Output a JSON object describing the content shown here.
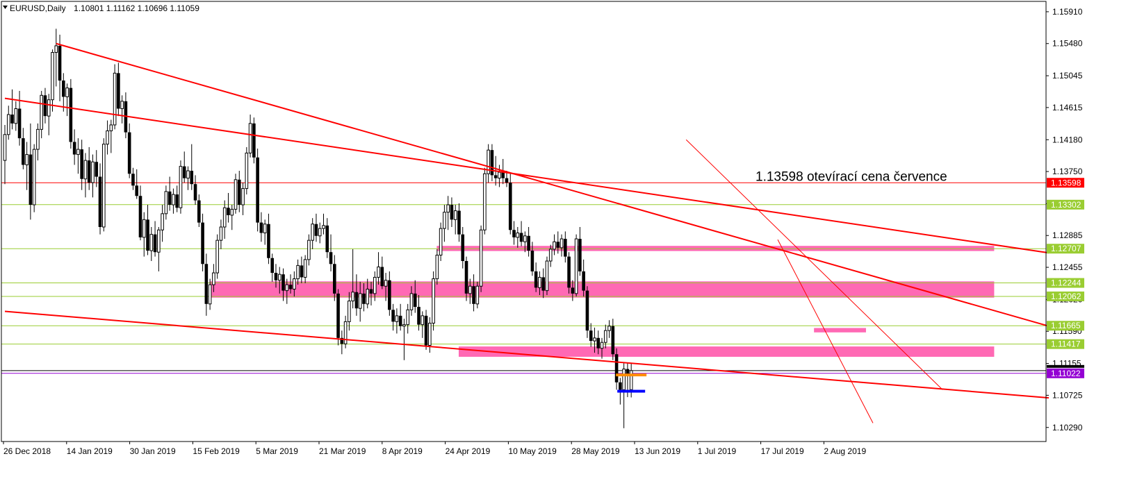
{
  "header": {
    "symbol_timeframe": "EURUSD,Daily",
    "ohlc": "1.10801 1.11162 1.10696 1.11059"
  },
  "chart_data": {
    "type": "candlestick",
    "title": "EURUSD,Daily",
    "ylim": [
      1.101,
      1.1605
    ],
    "y_ticks": [
      1.1591,
      1.1548,
      1.15045,
      1.14615,
      1.1418,
      1.1375,
      1.13315,
      1.12885,
      1.12455,
      1.1202,
      1.1159,
      1.11155,
      1.10725,
      1.1029
    ],
    "x_tick_labels": [
      "26 Dec 2018",
      "14 Jan 2019",
      "30 Jan 2019",
      "15 Feb 2019",
      "5 Mar 2019",
      "21 Mar 2019",
      "8 Apr 2019",
      "24 Apr 2019",
      "10 May 2019",
      "28 May 2019",
      "13 Jun 2019",
      "1 Jul 2019",
      "17 Jul 2019",
      "2 Aug 2019"
    ],
    "horizontal_levels": [
      {
        "value": 1.13598,
        "label": "1.13598",
        "color": "#ff0000",
        "bg": "#ff0000"
      },
      {
        "value": 1.13302,
        "label": "1.13302",
        "color": "#9acd32",
        "bg": "#9acd32"
      },
      {
        "value": 1.12707,
        "label": "1.12707",
        "color": "#9acd32",
        "bg": "#9acd32"
      },
      {
        "value": 1.12244,
        "label": "1.12244",
        "color": "#9acd32",
        "bg": "#9acd32"
      },
      {
        "value": 1.12062,
        "label": "1.12062",
        "color": "#9acd32",
        "bg": "#9acd32"
      },
      {
        "value": 1.11665,
        "label": "1.11665",
        "color": "#9acd32",
        "bg": "#9acd32"
      },
      {
        "value": 1.11417,
        "label": "1.11417",
        "color": "#9acd32",
        "bg": "#9acd32"
      },
      {
        "value": 1.11022,
        "label": "1.11022",
        "color": "#9400d3",
        "bg": "#9400d3"
      }
    ],
    "current_price": {
      "value": 1.11059,
      "color": "#000000"
    },
    "annotation": {
      "text": "1.13598 otevírací cena července",
      "price": 1.13598
    },
    "zones": [
      {
        "from_bar": 118,
        "to_bar": 270,
        "low": 1.1268,
        "high": 1.1274
      },
      {
        "from_bar": 56,
        "to_bar": 270,
        "low": 1.1205,
        "high": 1.1226
      },
      {
        "from_bar": 124,
        "to_bar": 270,
        "low": 1.1125,
        "high": 1.1138
      },
      {
        "from_bar": 221,
        "to_bar": 235,
        "low": 1.1158,
        "high": 1.1163
      }
    ],
    "trendlines": [
      {
        "from": [
          14,
          1.1548
        ],
        "to": [
          285,
          1.1166
        ],
        "width": 2
      },
      {
        "from": [
          0,
          1.1474
        ],
        "to": [
          285,
          1.1265
        ],
        "width": 2
      },
      {
        "from": [
          0,
          1.1186
        ],
        "to": [
          285,
          1.1069
        ],
        "width": 2
      },
      {
        "from": [
          186,
          1.1418
        ],
        "to": [
          256,
          1.108
        ],
        "width": 1
      },
      {
        "from": [
          211,
          1.1283
        ],
        "to": [
          237,
          1.1035
        ],
        "width": 1
      }
    ],
    "candles": [
      [
        1.139,
        1.1438,
        1.1358,
        1.1425
      ],
      [
        1.1425,
        1.1464,
        1.1418,
        1.1452
      ],
      [
        1.1452,
        1.1486,
        1.1432,
        1.144
      ],
      [
        1.144,
        1.147,
        1.143,
        1.146
      ],
      [
        1.146,
        1.1484,
        1.141,
        1.142
      ],
      [
        1.142,
        1.1434,
        1.1378,
        1.1384
      ],
      [
        1.1384,
        1.1415,
        1.135,
        1.1398
      ],
      [
        1.1398,
        1.144,
        1.131,
        1.133
      ],
      [
        1.133,
        1.1412,
        1.132,
        1.1405
      ],
      [
        1.1405,
        1.144,
        1.139,
        1.1432
      ],
      [
        1.1432,
        1.1484,
        1.142,
        1.1478
      ],
      [
        1.1478,
        1.1488,
        1.144,
        1.145
      ],
      [
        1.145,
        1.148,
        1.1424,
        1.1472
      ],
      [
        1.1472,
        1.154,
        1.1456,
        1.1536
      ],
      [
        1.1536,
        1.1568,
        1.149,
        1.1545
      ],
      [
        1.1545,
        1.156,
        1.147,
        1.1498
      ],
      [
        1.1498,
        1.1508,
        1.1456,
        1.1476
      ],
      [
        1.1476,
        1.1494,
        1.145,
        1.1488
      ],
      [
        1.1488,
        1.15,
        1.1406,
        1.1415
      ],
      [
        1.1415,
        1.1432,
        1.1384,
        1.1398
      ],
      [
        1.1398,
        1.142,
        1.1372,
        1.1405
      ],
      [
        1.1405,
        1.1418,
        1.135,
        1.1365
      ],
      [
        1.1365,
        1.14,
        1.134,
        1.139
      ],
      [
        1.139,
        1.1408,
        1.135,
        1.136
      ],
      [
        1.136,
        1.1398,
        1.134,
        1.1388
      ],
      [
        1.1388,
        1.1404,
        1.1354,
        1.1368
      ],
      [
        1.1368,
        1.1386,
        1.129,
        1.13
      ],
      [
        1.13,
        1.142,
        1.1294,
        1.1412
      ],
      [
        1.1412,
        1.1444,
        1.1398,
        1.143
      ],
      [
        1.143,
        1.1445,
        1.14,
        1.1438
      ],
      [
        1.1438,
        1.152,
        1.1432,
        1.1508
      ],
      [
        1.1508,
        1.1522,
        1.145,
        1.146
      ],
      [
        1.146,
        1.1478,
        1.144,
        1.147
      ],
      [
        1.147,
        1.1482,
        1.142,
        1.1428
      ],
      [
        1.1428,
        1.144,
        1.1366,
        1.1372
      ],
      [
        1.1372,
        1.138,
        1.135,
        1.1356
      ],
      [
        1.1356,
        1.1378,
        1.1338,
        1.1342
      ],
      [
        1.1342,
        1.1356,
        1.1282,
        1.1286
      ],
      [
        1.1286,
        1.132,
        1.126,
        1.131
      ],
      [
        1.131,
        1.133,
        1.1262,
        1.1268
      ],
      [
        1.1268,
        1.13,
        1.1254,
        1.129
      ],
      [
        1.129,
        1.1308,
        1.126,
        1.1266
      ],
      [
        1.1266,
        1.13,
        1.124,
        1.1296
      ],
      [
        1.1296,
        1.133,
        1.128,
        1.1318
      ],
      [
        1.1318,
        1.1356,
        1.131,
        1.1348
      ],
      [
        1.1348,
        1.1368,
        1.1322,
        1.133
      ],
      [
        1.133,
        1.1352,
        1.1318,
        1.1344
      ],
      [
        1.1344,
        1.1356,
        1.132,
        1.1326
      ],
      [
        1.1326,
        1.139,
        1.1318,
        1.1382
      ],
      [
        1.1382,
        1.1402,
        1.136,
        1.1366
      ],
      [
        1.1366,
        1.1382,
        1.135,
        1.1376
      ],
      [
        1.1376,
        1.1412,
        1.135,
        1.1358
      ],
      [
        1.1358,
        1.137,
        1.133,
        1.1336
      ],
      [
        1.1336,
        1.1344,
        1.13,
        1.1306
      ],
      [
        1.1306,
        1.1318,
        1.124,
        1.125
      ],
      [
        1.125,
        1.1264,
        1.118,
        1.1196
      ],
      [
        1.1196,
        1.123,
        1.1188,
        1.1222
      ],
      [
        1.1222,
        1.125,
        1.1212,
        1.1238
      ],
      [
        1.1238,
        1.129,
        1.123,
        1.1282
      ],
      [
        1.1282,
        1.131,
        1.127,
        1.13
      ],
      [
        1.13,
        1.1336,
        1.1284,
        1.1326
      ],
      [
        1.1326,
        1.1346,
        1.1306,
        1.1316
      ],
      [
        1.1316,
        1.133,
        1.1296,
        1.1324
      ],
      [
        1.1324,
        1.1372,
        1.1318,
        1.1364
      ],
      [
        1.1364,
        1.1376,
        1.132,
        1.133
      ],
      [
        1.133,
        1.136,
        1.1316,
        1.1352
      ],
      [
        1.1352,
        1.1408,
        1.1344,
        1.14
      ],
      [
        1.14,
        1.1452,
        1.1394,
        1.144
      ],
      [
        1.144,
        1.1448,
        1.1386,
        1.1394
      ],
      [
        1.1394,
        1.1406,
        1.1294,
        1.1306
      ],
      [
        1.1306,
        1.132,
        1.128,
        1.1292
      ],
      [
        1.1292,
        1.131,
        1.1276,
        1.1304
      ],
      [
        1.1304,
        1.1318,
        1.125,
        1.1258
      ],
      [
        1.1258,
        1.1264,
        1.1226,
        1.1238
      ],
      [
        1.1238,
        1.125,
        1.1218,
        1.1228
      ],
      [
        1.1228,
        1.1246,
        1.121,
        1.1236
      ],
      [
        1.1236,
        1.1244,
        1.12,
        1.1214
      ],
      [
        1.1214,
        1.123,
        1.1196,
        1.1222
      ],
      [
        1.1222,
        1.1236,
        1.121,
        1.1216
      ],
      [
        1.1216,
        1.124,
        1.1206,
        1.123
      ],
      [
        1.123,
        1.1256,
        1.1222,
        1.1248
      ],
      [
        1.1248,
        1.126,
        1.1224,
        1.1232
      ],
      [
        1.1232,
        1.1262,
        1.1224,
        1.1256
      ],
      [
        1.1256,
        1.129,
        1.1248,
        1.1282
      ],
      [
        1.1282,
        1.1312,
        1.127,
        1.1304
      ],
      [
        1.1304,
        1.1318,
        1.128,
        1.1288
      ],
      [
        1.1288,
        1.1306,
        1.1278,
        1.1298
      ],
      [
        1.1298,
        1.1318,
        1.129,
        1.1302
      ],
      [
        1.1302,
        1.1312,
        1.1258,
        1.1266
      ],
      [
        1.1266,
        1.129,
        1.124,
        1.125
      ],
      [
        1.125,
        1.1262,
        1.12,
        1.121
      ],
      [
        1.121,
        1.1216,
        1.114,
        1.115
      ],
      [
        1.115,
        1.116,
        1.1128,
        1.1142
      ],
      [
        1.1142,
        1.118,
        1.1136,
        1.1172
      ],
      [
        1.1172,
        1.1212,
        1.116,
        1.12
      ],
      [
        1.12,
        1.127,
        1.119,
        1.1212
      ],
      [
        1.1212,
        1.1236,
        1.118,
        1.119
      ],
      [
        1.119,
        1.1226,
        1.1172,
        1.121
      ],
      [
        1.121,
        1.1224,
        1.1186,
        1.1196
      ],
      [
        1.1196,
        1.123,
        1.119,
        1.1216
      ],
      [
        1.1216,
        1.1226,
        1.1194,
        1.121
      ],
      [
        1.121,
        1.124,
        1.12,
        1.1232
      ],
      [
        1.1232,
        1.1266,
        1.1222,
        1.1246
      ],
      [
        1.1246,
        1.126,
        1.1216,
        1.122
      ],
      [
        1.122,
        1.1238,
        1.12,
        1.1228
      ],
      [
        1.1228,
        1.124,
        1.118,
        1.1188
      ],
      [
        1.1188,
        1.1196,
        1.116,
        1.1172
      ],
      [
        1.1172,
        1.119,
        1.1156,
        1.118
      ],
      [
        1.118,
        1.1196,
        1.116,
        1.1166
      ],
      [
        1.1166,
        1.1176,
        1.112,
        1.1168
      ],
      [
        1.1168,
        1.1196,
        1.1156,
        1.1188
      ],
      [
        1.1188,
        1.122,
        1.118,
        1.121
      ],
      [
        1.121,
        1.1228,
        1.1184,
        1.1192
      ],
      [
        1.1192,
        1.1208,
        1.116,
        1.1168
      ],
      [
        1.1168,
        1.1186,
        1.115,
        1.118
      ],
      [
        1.118,
        1.1188,
        1.1134,
        1.114
      ],
      [
        1.114,
        1.1178,
        1.113,
        1.117
      ],
      [
        1.117,
        1.124,
        1.116,
        1.123
      ],
      [
        1.123,
        1.127,
        1.1222,
        1.1262
      ],
      [
        1.1262,
        1.1306,
        1.1254,
        1.1298
      ],
      [
        1.1298,
        1.133,
        1.128,
        1.132
      ],
      [
        1.132,
        1.1342,
        1.1296,
        1.133
      ],
      [
        1.133,
        1.134,
        1.13,
        1.131
      ],
      [
        1.131,
        1.133,
        1.129,
        1.1322
      ],
      [
        1.1322,
        1.1332,
        1.128,
        1.129
      ],
      [
        1.129,
        1.13,
        1.1244,
        1.1254
      ],
      [
        1.1254,
        1.126,
        1.12,
        1.121
      ],
      [
        1.121,
        1.123,
        1.1196,
        1.122
      ],
      [
        1.122,
        1.1236,
        1.1186,
        1.1196
      ],
      [
        1.1196,
        1.1226,
        1.119,
        1.122
      ],
      [
        1.122,
        1.1302,
        1.1212,
        1.1296
      ],
      [
        1.1296,
        1.138,
        1.129,
        1.1372
      ],
      [
        1.1372,
        1.1412,
        1.136,
        1.1404
      ],
      [
        1.1404,
        1.1412,
        1.1362,
        1.137
      ],
      [
        1.137,
        1.1396,
        1.1356,
        1.1366
      ],
      [
        1.1366,
        1.1384,
        1.1354,
        1.1374
      ],
      [
        1.1374,
        1.1392,
        1.1358,
        1.1366
      ],
      [
        1.1366,
        1.1376,
        1.1354,
        1.136
      ],
      [
        1.136,
        1.1372,
        1.129,
        1.1296
      ],
      [
        1.1296,
        1.1308,
        1.1276,
        1.1286
      ],
      [
        1.1286,
        1.13,
        1.1272,
        1.1292
      ],
      [
        1.1292,
        1.1308,
        1.1274,
        1.128
      ],
      [
        1.128,
        1.1294,
        1.1266,
        1.1288
      ],
      [
        1.1288,
        1.13,
        1.126,
        1.1268
      ],
      [
        1.1268,
        1.128,
        1.1234,
        1.124
      ],
      [
        1.124,
        1.1252,
        1.1212,
        1.1218
      ],
      [
        1.1218,
        1.124,
        1.1208,
        1.1232
      ],
      [
        1.1232,
        1.1244,
        1.1204,
        1.1214
      ],
      [
        1.1214,
        1.126,
        1.1208,
        1.1254
      ],
      [
        1.1254,
        1.1276,
        1.1246,
        1.127
      ],
      [
        1.127,
        1.129,
        1.1262,
        1.128
      ],
      [
        1.128,
        1.1294,
        1.1264,
        1.1272
      ],
      [
        1.1272,
        1.129,
        1.126,
        1.1284
      ],
      [
        1.1284,
        1.1294,
        1.1252,
        1.126
      ],
      [
        1.126,
        1.1266,
        1.121,
        1.1218
      ],
      [
        1.1218,
        1.1228,
        1.12,
        1.121
      ],
      [
        1.121,
        1.129,
        1.1206,
        1.1284
      ],
      [
        1.1284,
        1.13,
        1.1234,
        1.124
      ],
      [
        1.124,
        1.1256,
        1.1206,
        1.1214
      ],
      [
        1.1214,
        1.122,
        1.115,
        1.116
      ],
      [
        1.116,
        1.117,
        1.1138,
        1.1146
      ],
      [
        1.1146,
        1.1164,
        1.113,
        1.115
      ],
      [
        1.115,
        1.116,
        1.1128,
        1.1136
      ],
      [
        1.1136,
        1.115,
        1.1122,
        1.1144
      ],
      [
        1.1144,
        1.1168,
        1.1136,
        1.116
      ],
      [
        1.116,
        1.1174,
        1.115,
        1.1166
      ],
      [
        1.1166,
        1.1176,
        1.112,
        1.1128
      ],
      [
        1.1128,
        1.1136,
        1.108,
        1.109
      ],
      [
        1.109,
        1.1096,
        1.106,
        1.108
      ],
      [
        1.108,
        1.1116,
        1.1028,
        1.1108
      ],
      [
        1.1108,
        1.1116,
        1.107,
        1.11
      ],
      [
        1.10801,
        1.11162,
        1.10696,
        1.11059
      ]
    ]
  }
}
